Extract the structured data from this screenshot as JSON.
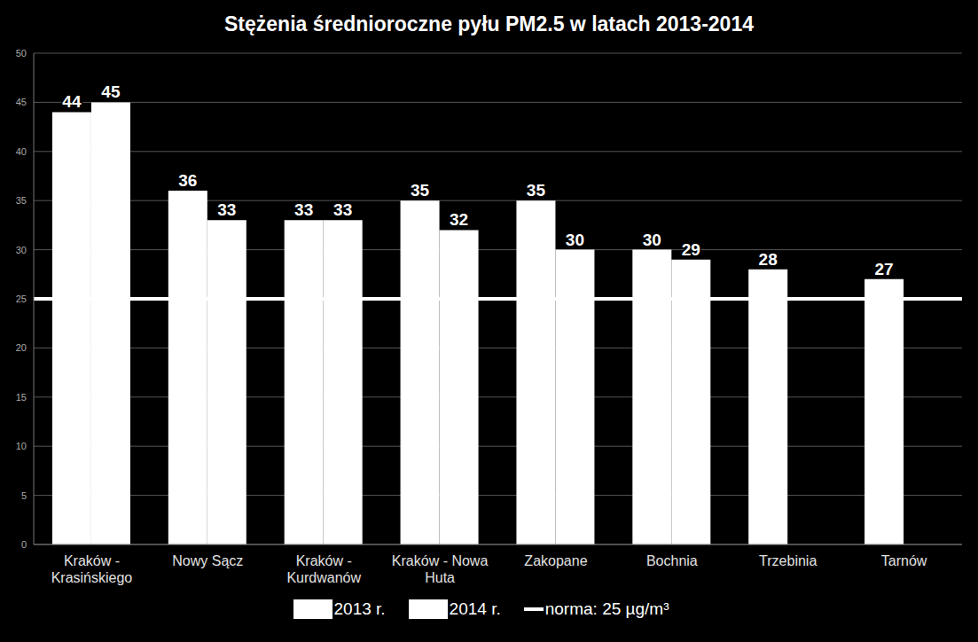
{
  "chart_data": {
    "type": "bar",
    "title": "Stężenia średnioroczne pyłu PM2.5 w latach 2013-2014",
    "categories": [
      "Kraków -\nKrasińskiego",
      "Nowy Sącz",
      "Kraków -\nKurdwanów",
      "Kraków - Nowa\nHuta",
      "Zakopane",
      "Bochnia",
      "Trzebinia",
      "Tarnów"
    ],
    "series": [
      {
        "name": "2013 r.",
        "color": "#ffffff",
        "values": [
          44,
          36,
          33,
          35,
          35,
          30,
          28,
          27
        ]
      },
      {
        "name": "2014 r.",
        "color": "#ffffff",
        "values": [
          45,
          33,
          33,
          32,
          30,
          29,
          null,
          null
        ]
      }
    ],
    "norm": {
      "value": 25,
      "label": "norma: 25 µg/m³",
      "color": "#ffffff"
    },
    "ylim": [
      0,
      50
    ],
    "yticks": [
      0,
      5,
      10,
      15,
      20,
      25,
      30,
      35,
      40,
      45,
      50
    ],
    "grid": true,
    "data_labels": true,
    "legend": "bottom"
  }
}
